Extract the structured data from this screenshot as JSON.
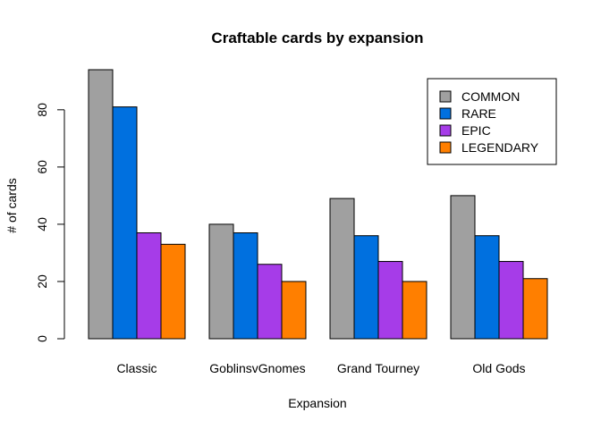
{
  "chart_data": {
    "type": "bar",
    "title": "Craftable cards by expansion",
    "xlabel": "Expansion",
    "ylabel": "# of cards",
    "categories": [
      "Classic",
      "GoblinsvGnomes",
      "Grand Tourney",
      "Old Gods"
    ],
    "series": [
      {
        "name": "COMMON",
        "color": "#a0a0a0",
        "values": [
          94,
          40,
          49,
          50
        ]
      },
      {
        "name": "RARE",
        "color": "#0070df",
        "values": [
          81,
          37,
          36,
          36
        ]
      },
      {
        "name": "EPIC",
        "color": "#a63ce8",
        "values": [
          37,
          26,
          27,
          27
        ]
      },
      {
        "name": "LEGENDARY",
        "color": "#ff7f00",
        "values": [
          33,
          20,
          20,
          21
        ]
      }
    ],
    "ylim": [
      0,
      94
    ],
    "yticks": [
      0,
      20,
      40,
      60,
      80
    ],
    "grid": false,
    "legend_position": "top-right"
  }
}
